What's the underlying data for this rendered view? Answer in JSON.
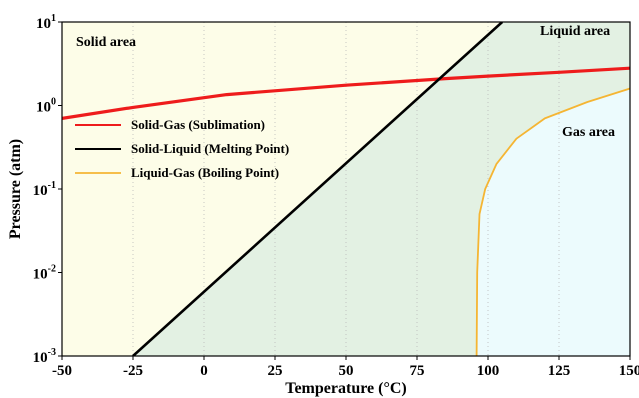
{
  "chart_data": {
    "type": "line",
    "title": "",
    "xlabel": "Temperature (°C)",
    "ylabel": "Pressure (atm)",
    "xlim": [
      -50,
      150
    ],
    "ylim_log10": [
      -3,
      1
    ],
    "y_scale": "log",
    "grid": "vertical",
    "x_ticks": [
      -50,
      -25,
      0,
      25,
      50,
      75,
      100,
      125,
      150
    ],
    "y_ticks": [
      {
        "base": "10",
        "exp": "-3",
        "log": -3
      },
      {
        "base": "10",
        "exp": "-2",
        "log": -2
      },
      {
        "base": "10",
        "exp": "-1",
        "log": -1
      },
      {
        "base": "10",
        "exp": "0",
        "log": 0
      },
      {
        "base": "10",
        "exp": "1",
        "log": 1
      }
    ],
    "legend_position": "upper-left",
    "regions": [
      {
        "label": "Solid area",
        "color": "#fdfde8"
      },
      {
        "label": "Liquid area",
        "color": "#e3f1e3"
      },
      {
        "label": "Gas area",
        "color": "#ecfbfd"
      }
    ],
    "series": [
      {
        "name": "Solid-Gas (Sublimation)",
        "color": "#ee1c1c",
        "points": [
          [
            -50,
            0.7
          ],
          [
            -25,
            0.95
          ],
          [
            8,
            1.35
          ],
          [
            50,
            1.75
          ],
          [
            85,
            2.1
          ],
          [
            100,
            2.25
          ],
          [
            125,
            2.5
          ],
          [
            150,
            2.8
          ]
        ]
      },
      {
        "name": "Solid-Liquid (Melting Point)",
        "color": "#000000",
        "points": [
          [
            -25,
            0.001
          ],
          [
            105,
            10
          ]
        ]
      },
      {
        "name": "Liquid-Gas (Boiling Point)",
        "color": "#f5b533",
        "points": [
          [
            96,
            0.001
          ],
          [
            96.2,
            0.01
          ],
          [
            97,
            0.05
          ],
          [
            99,
            0.1
          ],
          [
            103,
            0.2
          ],
          [
            110,
            0.4
          ],
          [
            120,
            0.7
          ],
          [
            135,
            1.1
          ],
          [
            150,
            1.6
          ]
        ]
      }
    ]
  }
}
